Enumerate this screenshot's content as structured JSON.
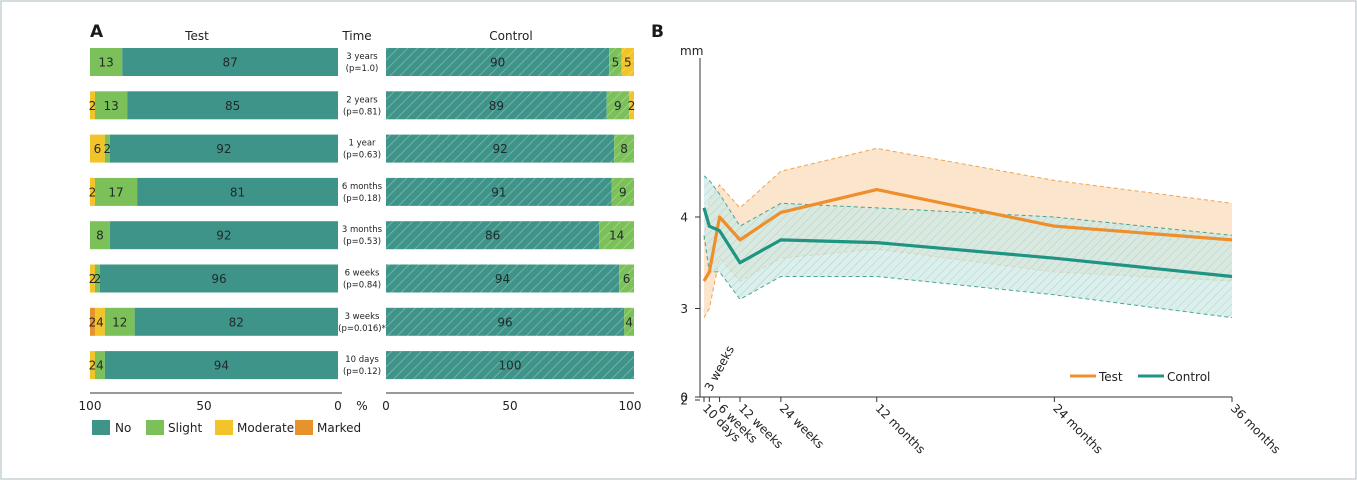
{
  "colors": {
    "no": "#3f9489",
    "slight": "#7cc05a",
    "moderate": "#f2c42a",
    "marked": "#e8922c",
    "test_line": "#ee8f2c",
    "test_band": "#fae1c4",
    "control_line": "#1f9483",
    "control_band": "#cfe9e6",
    "frame": "#b9c6cc"
  },
  "panel_a": {
    "letter": "A",
    "test_header": "Test",
    "time_header": "Time",
    "control_header": "Control",
    "test_axis_ticks": [
      "100",
      "50",
      "0"
    ],
    "percent_label": "%",
    "control_axis_ticks": [
      "0",
      "50",
      "100"
    ],
    "legend": [
      {
        "key": "no",
        "label": "No"
      },
      {
        "key": "slight",
        "label": "Slight"
      },
      {
        "key": "moderate",
        "label": "Moderate"
      },
      {
        "key": "marked",
        "label": "Marked"
      }
    ]
  },
  "panel_b": {
    "letter": "B",
    "y_unit": "mm",
    "legend": [
      {
        "key": "test",
        "label": "Test"
      },
      {
        "key": "control",
        "label": "Control"
      }
    ]
  },
  "chart_data": [
    {
      "type": "bar",
      "stacked": true,
      "orientation": "horizontal",
      "rows": [
        {
          "time": "3 years",
          "p": "(p=1.0)",
          "test": {
            "no": 87,
            "slight": 13,
            "moderate": 0,
            "marked": 0,
            "labels": [
              "13",
              "87"
            ]
          },
          "control": {
            "no": 90,
            "slight": 5,
            "moderate": 5,
            "marked": 0,
            "labels": [
              "90",
              "5",
              "5"
            ]
          }
        },
        {
          "time": "2 years",
          "p": "(p=0.81)",
          "test": {
            "no": 85,
            "slight": 13,
            "moderate": 2,
            "marked": 0,
            "labels": [
              "2",
              "13",
              "85"
            ]
          },
          "control": {
            "no": 89,
            "slight": 9,
            "moderate": 2,
            "marked": 0,
            "labels": [
              "89",
              "9",
              "2"
            ]
          }
        },
        {
          "time": "1 year",
          "p": "(p=0.63)",
          "test": {
            "no": 92,
            "slight": 2,
            "moderate": 6,
            "marked": 0,
            "labels": [
              "6",
              "2",
              "92"
            ]
          },
          "control": {
            "no": 92,
            "slight": 8,
            "moderate": 0,
            "marked": 0,
            "labels": [
              "92",
              "8"
            ]
          }
        },
        {
          "time": "6 months",
          "p": "(p=0.18)",
          "test": {
            "no": 81,
            "slight": 17,
            "moderate": 2,
            "marked": 0,
            "labels": [
              "2",
              "17",
              "81"
            ]
          },
          "control": {
            "no": 91,
            "slight": 9,
            "moderate": 0,
            "marked": 0,
            "labels": [
              "91",
              "9"
            ]
          }
        },
        {
          "time": "3 months",
          "p": "(p=0.53)",
          "test": {
            "no": 92,
            "slight": 8,
            "moderate": 0,
            "marked": 0,
            "labels": [
              "8",
              "92"
            ]
          },
          "control": {
            "no": 86,
            "slight": 14,
            "moderate": 0,
            "marked": 0,
            "labels": [
              "86",
              "14"
            ]
          }
        },
        {
          "time": "6 weeks",
          "p": "(p=0.84)",
          "test": {
            "no": 96,
            "slight": 2,
            "moderate": 2,
            "marked": 0,
            "labels": [
              "2",
              "2",
              "96"
            ]
          },
          "control": {
            "no": 94,
            "slight": 6,
            "moderate": 0,
            "marked": 0,
            "labels": [
              "94",
              "6"
            ]
          }
        },
        {
          "time": "3 weeks",
          "p": "(p=0.016)*",
          "test": {
            "no": 82,
            "slight": 12,
            "moderate": 4,
            "marked": 2,
            "labels": [
              "2",
              "4",
              "12",
              "82"
            ]
          },
          "control": {
            "no": 96,
            "slight": 4,
            "moderate": 0,
            "marked": 0,
            "labels": [
              "96",
              "4"
            ]
          }
        },
        {
          "time": "10 days",
          "p": "(p=0.12)",
          "test": {
            "no": 94,
            "slight": 4,
            "moderate": 2,
            "marked": 0,
            "labels": [
              "2",
              "4",
              "94"
            ]
          },
          "control": {
            "no": 100,
            "slight": 0,
            "moderate": 0,
            "marked": 0,
            "labels": [
              "100"
            ]
          }
        }
      ]
    },
    {
      "type": "line",
      "y_label": "mm",
      "ylim": [
        0,
        5
      ],
      "y_ticks": [
        "0",
        "2",
        "3",
        "4"
      ],
      "x_ticks": [
        {
          "t": 10,
          "label": "10 days"
        },
        {
          "t": 21,
          "label": "3 weeks"
        },
        {
          "t": 42,
          "label": "6 weeks"
        },
        {
          "t": 84,
          "label": "12 weeks"
        },
        {
          "t": 168,
          "label": "24 weeks"
        },
        {
          "t": 365,
          "label": "12 months"
        },
        {
          "t": 730,
          "label": "24 months"
        },
        {
          "t": 1095,
          "label": "36 months"
        }
      ],
      "series": [
        {
          "name": "Test",
          "color": "#ee8f2c",
          "mean": [
            3.3,
            3.4,
            4.0,
            3.75,
            4.05,
            4.3,
            3.9,
            3.75
          ],
          "upper": [
            3.75,
            4.2,
            4.35,
            4.1,
            4.5,
            4.75,
            4.4,
            4.15
          ],
          "lower": [
            2.9,
            3.0,
            3.55,
            3.3,
            3.55,
            3.65,
            3.4,
            3.3
          ]
        },
        {
          "name": "Control",
          "color": "#1f9483",
          "mean": [
            4.1,
            3.9,
            3.85,
            3.5,
            3.75,
            3.72,
            3.55,
            3.35
          ],
          "upper": [
            4.45,
            4.4,
            4.25,
            3.9,
            4.15,
            4.1,
            4.0,
            3.8
          ],
          "lower": [
            3.8,
            3.4,
            3.4,
            3.1,
            3.35,
            3.35,
            3.15,
            2.9
          ]
        }
      ]
    }
  ]
}
